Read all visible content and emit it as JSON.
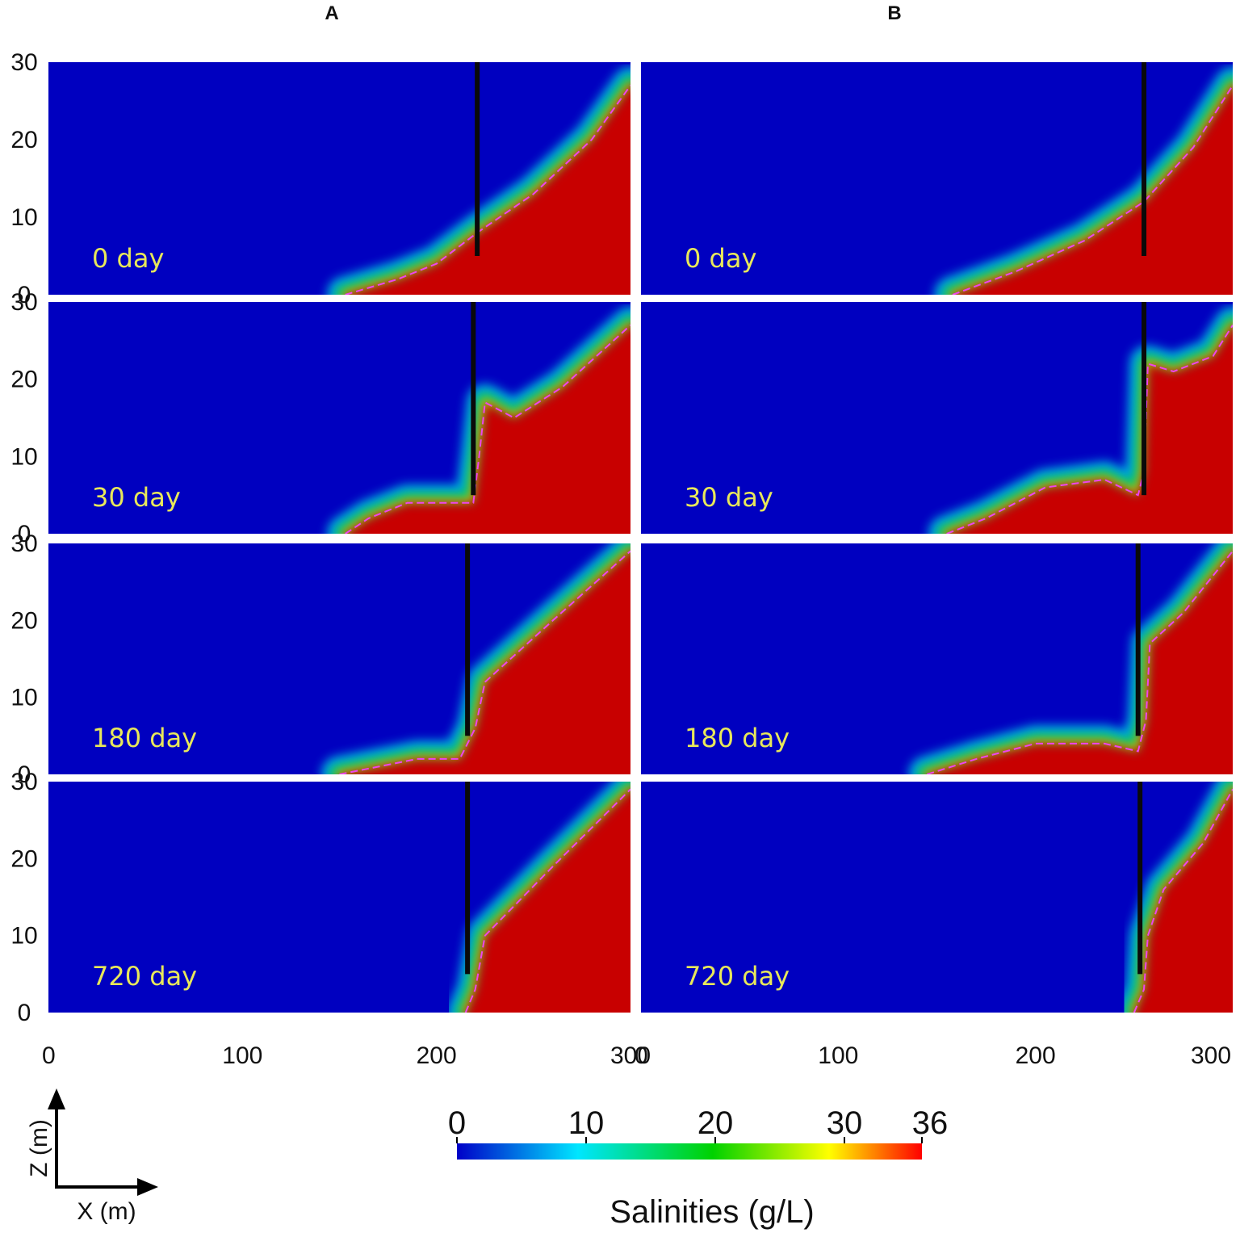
{
  "columns": [
    {
      "label": "A",
      "y_ticks": [
        "0",
        "10",
        "20",
        "30"
      ],
      "x_ticks": [
        "0",
        "100",
        "200",
        "300"
      ]
    },
    {
      "label": "B",
      "y_ticks": [],
      "x_ticks": [
        "0",
        "100",
        "200",
        "300"
      ]
    }
  ],
  "axes": {
    "x_label": "X (m)",
    "z_label": "Z (m)"
  },
  "colorbar": {
    "title": "Salinities (g/L)",
    "ticks": [
      {
        "label": "0",
        "value": 0
      },
      {
        "label": "10",
        "value": 10
      },
      {
        "label": "20",
        "value": 20
      },
      {
        "label": "30",
        "value": 30
      },
      {
        "label": "36",
        "value": 36
      }
    ],
    "range": [
      0,
      36
    ],
    "colors": [
      "#0000c8",
      "#00e6ff",
      "#00d200",
      "#ffff00",
      "#ff0000"
    ]
  },
  "chart_data": [
    {
      "type": "heatmap",
      "column": "A",
      "xlim": [
        0,
        300
      ],
      "ylim": [
        0,
        30
      ],
      "fresh_color": "#0000c0",
      "salt_color": "#c80000",
      "isoline_color": "#ee44ee",
      "panels": [
        {
          "label": "0 day",
          "wall": {
            "x": 221,
            "z_bottom": 5,
            "z_top": 30
          },
          "interface": [
            [
              153,
              0
            ],
            [
              180,
              2
            ],
            [
              200,
              4
            ],
            [
              221,
              8
            ],
            [
              250,
              13
            ],
            [
              280,
              20
            ],
            [
              300,
              27
            ]
          ]
        },
        {
          "label": "30 day",
          "wall": {
            "x": 219,
            "z_bottom": 5,
            "z_top": 30
          },
          "interface": [
            [
              153,
              0
            ],
            [
              165,
              2
            ],
            [
              185,
              4
            ],
            [
              205,
              4
            ],
            [
              219,
              4
            ],
            [
              222,
              10
            ],
            [
              225,
              17
            ],
            [
              240,
              15
            ],
            [
              265,
              19
            ],
            [
              300,
              27
            ]
          ]
        },
        {
          "label": "180 day",
          "wall": {
            "x": 216,
            "z_bottom": 5,
            "z_top": 30
          },
          "interface": [
            [
              150,
              0
            ],
            [
              170,
              1
            ],
            [
              190,
              2
            ],
            [
              212,
              2
            ],
            [
              220,
              6
            ],
            [
              225,
              12
            ],
            [
              260,
              20
            ],
            [
              300,
              29
            ]
          ]
        },
        {
          "label": "720 day",
          "wall": {
            "x": 216,
            "z_bottom": 5,
            "z_top": 30
          },
          "interface": [
            [
              215,
              0
            ],
            [
              220,
              3
            ],
            [
              225,
              10
            ],
            [
              260,
              19
            ],
            [
              300,
              29
            ]
          ]
        }
      ]
    },
    {
      "type": "heatmap",
      "column": "B",
      "xlim": [
        0,
        300
      ],
      "ylim": [
        0,
        30
      ],
      "fresh_color": "#0000c0",
      "salt_color": "#c80000",
      "isoline_color": "#ee44ee",
      "panels": [
        {
          "label": "0 day",
          "wall": {
            "x": 255,
            "z_bottom": 5,
            "z_top": 30
          },
          "interface": [
            [
              158,
              0
            ],
            [
              190,
              3
            ],
            [
              225,
              7
            ],
            [
              255,
              12
            ],
            [
              280,
              19
            ],
            [
              300,
              27
            ]
          ]
        },
        {
          "label": "30 day",
          "wall": {
            "x": 255,
            "z_bottom": 5,
            "z_top": 30
          },
          "interface": [
            [
              155,
              0
            ],
            [
              175,
              2
            ],
            [
              205,
              6
            ],
            [
              235,
              7
            ],
            [
              252,
              5
            ],
            [
              255,
              8
            ],
            [
              257,
              22
            ],
            [
              270,
              21
            ],
            [
              290,
              23
            ],
            [
              300,
              27
            ]
          ]
        },
        {
          "label": "180 day",
          "wall": {
            "x": 252,
            "z_bottom": 5,
            "z_top": 30
          },
          "interface": [
            [
              145,
              0
            ],
            [
              170,
              2
            ],
            [
              200,
              4
            ],
            [
              235,
              4
            ],
            [
              252,
              3
            ],
            [
              256,
              7
            ],
            [
              258,
              17
            ],
            [
              275,
              21
            ],
            [
              300,
              29
            ]
          ]
        },
        {
          "label": "720 day",
          "wall": {
            "x": 253,
            "z_bottom": 5,
            "z_top": 30
          },
          "interface": [
            [
              250,
              0
            ],
            [
              255,
              3
            ],
            [
              257,
              10
            ],
            [
              265,
              16
            ],
            [
              285,
              22
            ],
            [
              300,
              29
            ]
          ]
        }
      ]
    }
  ]
}
